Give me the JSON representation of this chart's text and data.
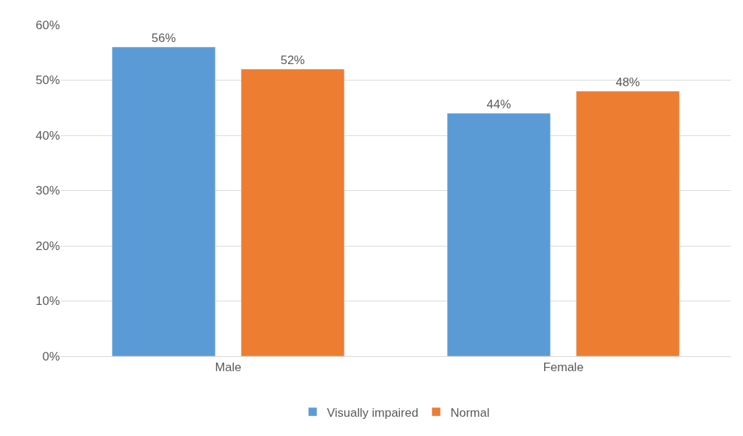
{
  "chart_data": {
    "type": "bar",
    "categories": [
      "Male",
      "Female"
    ],
    "series": [
      {
        "name": "Visually impaired",
        "color": "#5b9bd5",
        "values": [
          56,
          44
        ],
        "value_labels": [
          "56%",
          "44%"
        ]
      },
      {
        "name": "Normal",
        "color": "#ed7d31",
        "values": [
          52,
          48
        ],
        "value_labels": [
          "52%",
          "48%"
        ]
      }
    ],
    "ylim": [
      0,
      60
    ],
    "yticks": [
      {
        "value": 0,
        "label": "0%"
      },
      {
        "value": 10,
        "label": "10%"
      },
      {
        "value": 20,
        "label": "20%"
      },
      {
        "value": 30,
        "label": "30%"
      },
      {
        "value": 40,
        "label": "40%"
      },
      {
        "value": 50,
        "label": "50%"
      },
      {
        "value": 60,
        "label": "60%"
      }
    ],
    "grid": "y",
    "legend": "bottom"
  }
}
